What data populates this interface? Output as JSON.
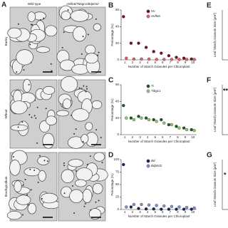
{
  "panel_labels": [
    "A",
    "B",
    "C",
    "D",
    "E",
    "F",
    "G"
  ],
  "panel_a": {
    "columns": [
      "Wild type",
      "Hvflo6/Tabgc1/Bdptst2"
    ],
    "rows": [
      "Barley",
      "Wheat",
      "Brachypodium"
    ]
  },
  "right_panels": {
    "y_label": "Leaf Starch Granule Size (μm²)",
    "significance": [
      "**",
      "*"
    ]
  },
  "chart_data": [
    {
      "type": "dot",
      "x_label": "Number of Starch Granules per Chloroplast",
      "y_label": "Percentage (%)",
      "categories": [
        "1",
        "2",
        "3",
        "4",
        "5",
        "6",
        "7",
        "8",
        "9",
        "10"
      ],
      "ylim": [
        0,
        60
      ],
      "yticks": [
        0,
        20,
        40,
        60
      ],
      "series": [
        {
          "name": "Hv",
          "color": "#7a1020",
          "values": [
            52,
            20,
            20,
            15,
            10,
            8,
            5,
            3,
            2,
            1
          ]
        },
        {
          "name": "Hvflo6",
          "color": "#e06070",
          "values": [
            2,
            1,
            1,
            1,
            0.5,
            0.5,
            0.5,
            0.5,
            0.5,
            0.5
          ]
        }
      ]
    },
    {
      "type": "dot",
      "x_label": "Number of Starch Granules per Chloroplast",
      "y_label": "Percentage (%)",
      "categories": [
        "1",
        "2",
        "3",
        "4",
        "5",
        "6",
        "7",
        "8",
        "9",
        "10"
      ],
      "ylim": [
        0,
        60
      ],
      "yticks": [
        0,
        20,
        40,
        60
      ],
      "series": [
        {
          "name": "Ti",
          "color": "#1f5a24",
          "values": [
            35,
            20,
            22,
            20,
            18,
            18,
            12,
            10,
            8,
            6
          ]
        },
        {
          "name": "Tibgc1",
          "color": "#8cc870",
          "values": [
            20,
            18,
            20,
            18,
            16,
            14,
            12,
            8,
            6,
            5
          ]
        }
      ]
    },
    {
      "type": "dot",
      "x_label": "Number of Starch Granules per Chloroplast",
      "y_label": "Percentage (%)",
      "categories": [
        "1",
        "2",
        "3",
        "4",
        "5",
        "6",
        "7",
        "8",
        "9",
        "10"
      ],
      "ylim": [
        0,
        100
      ],
      "yticks": [
        0,
        25,
        50,
        75,
        100
      ],
      "series": [
        {
          "name": "Bd",
          "color": "#1c2450",
          "values": [
            90,
            5,
            2,
            1,
            1,
            0.5,
            0.5,
            0.5,
            0.5,
            0.5
          ]
        },
        {
          "name": "Bdptst2",
          "color": "#8090d0",
          "values": [
            5,
            10,
            10,
            9,
            8,
            7,
            6,
            5,
            4,
            3
          ]
        }
      ]
    }
  ]
}
